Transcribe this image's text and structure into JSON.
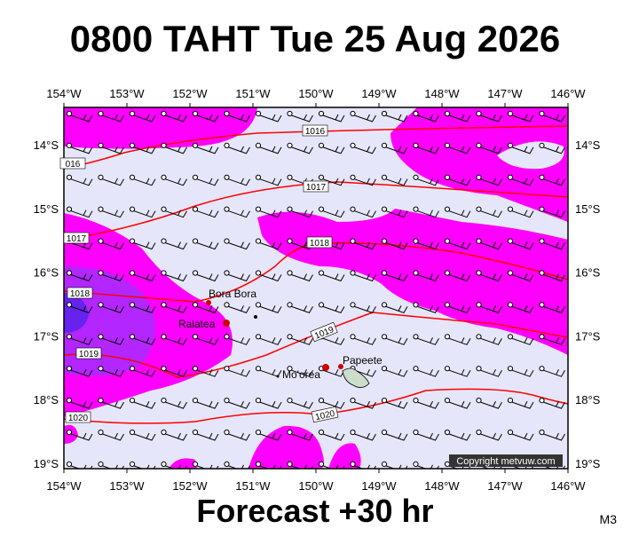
{
  "title": "0800 TAHT Tue 25 Aug 2026",
  "footer": "Forecast +30 hr",
  "code": "M3",
  "copyright": "Copyright metvuw.com",
  "lon_labels": [
    "154°W",
    "153°W",
    "152°W",
    "151°W",
    "150°W",
    "149°W",
    "148°W",
    "147°W",
    "146°W"
  ],
  "lat_labels": [
    "14°S",
    "15°S",
    "16°S",
    "17°S",
    "18°S",
    "19°S"
  ],
  "isobar_labels": [
    "1016",
    "016",
    "1017",
    "1017",
    "1018",
    "1018",
    "1019",
    "1019",
    "1020",
    "1020"
  ],
  "places": [
    "Bora Bora",
    "Raiatea",
    "Mo'orea",
    "Papeete"
  ]
}
